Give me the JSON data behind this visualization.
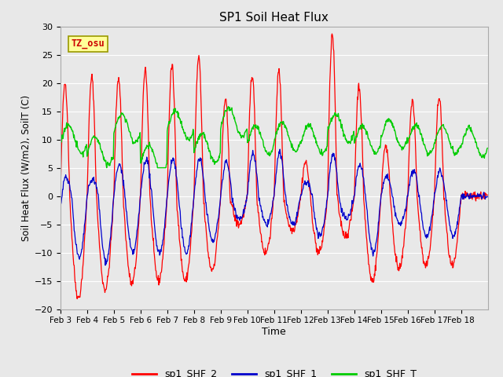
{
  "title": "SP1 Soil Heat Flux",
  "xlabel": "Time",
  "ylabel": "Soil Heat Flux (W/m2), SoilT (C)",
  "ylim": [
    -20,
    30
  ],
  "fig_bg": "#e8e8e8",
  "plot_bg": "#e8e8e8",
  "grid_color": "#d0d0d0",
  "line_colors": {
    "sp1_SHF_2": "#ff0000",
    "sp1_SHF_1": "#0000cc",
    "sp1_SHF_T": "#00cc00"
  },
  "tz_label": "TZ_osu",
  "tz_box_color": "#ffff99",
  "tz_text_color": "#cc0000",
  "x_tick_labels": [
    "Feb 3",
    "Feb 4",
    "Feb 5",
    "Feb 6",
    "Feb 7",
    "Feb 8",
    "Feb 9",
    "Feb 10",
    "Feb 11",
    "Feb 12",
    "Feb 13",
    "Feb 14",
    "Feb 15",
    "Feb 16",
    "Feb 17",
    "Feb 18"
  ],
  "x_tick_positions": [
    0,
    60,
    120,
    180,
    240,
    300,
    360,
    420,
    480,
    540,
    600,
    660,
    720,
    780,
    840,
    900
  ],
  "yticks": [
    -20,
    -15,
    -10,
    -5,
    0,
    5,
    10,
    15,
    20,
    25,
    30
  ],
  "shf2_peaks": [
    20,
    21,
    21,
    22.5,
    23,
    24.5,
    17,
    21.5,
    22,
    6,
    28.5,
    19.5,
    9,
    17,
    17.5
  ],
  "shf2_troughs": [
    -18,
    -16.5,
    -15.5,
    -15,
    -15,
    -13,
    -5,
    -10,
    -6,
    -10,
    -7,
    -15,
    -13,
    -12.5
  ],
  "shf1_peaks": [
    3.5,
    3,
    5.5,
    6.5,
    6.5,
    6.5,
    6,
    7.5,
    7.5,
    2.5,
    7.5,
    5.5,
    3.5,
    4.5,
    4.5
  ],
  "shf1_troughs": [
    -11,
    -11.5,
    -10,
    -10,
    -10,
    -8,
    -4,
    -5,
    -5,
    -7,
    -4,
    -10,
    -5,
    -7
  ],
  "shf1_start": -2.5,
  "temp_base": [
    10,
    8,
    12,
    6.5,
    12.5,
    8.5,
    13,
    10,
    10.5,
    10,
    12,
    10,
    11,
    10,
    10,
    9.5
  ],
  "temp_amplitude": 2.5
}
